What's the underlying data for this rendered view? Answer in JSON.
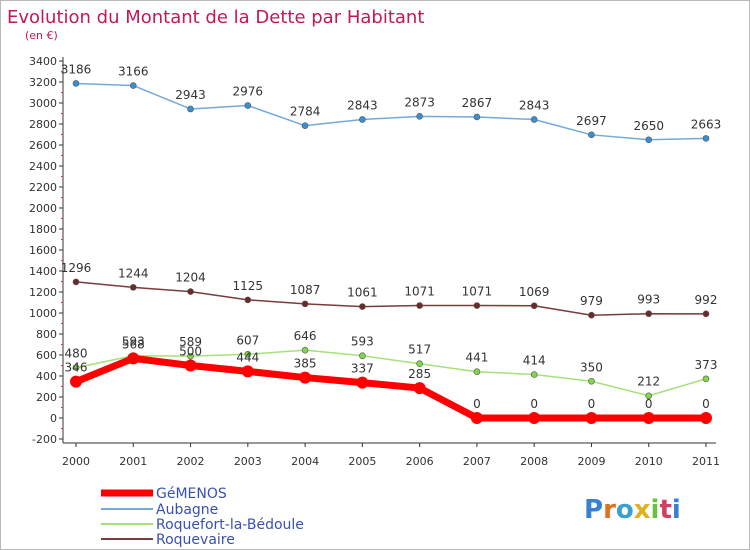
{
  "chart_data": {
    "type": "line",
    "title": "Evolution du Montant de la Dette par Habitant",
    "subtitle": "(en €)",
    "ylim": [
      -200,
      3400
    ],
    "y_ticks": [
      -200,
      0,
      200,
      400,
      600,
      800,
      1000,
      1200,
      1400,
      1600,
      1800,
      2000,
      2200,
      2400,
      2600,
      2800,
      3000,
      3200,
      3400
    ],
    "x": [
      "2000",
      "2001",
      "2002",
      "2003",
      "2004",
      "2005",
      "2006",
      "2007",
      "2008",
      "2009",
      "2010",
      "2011"
    ],
    "grid": false,
    "legend_position": "bottom-left",
    "series": [
      {
        "name": "GéMENOS",
        "color": "#ff0000",
        "point_color": "#ff0000",
        "width": 7,
        "values": [
          346,
          568,
          500,
          444,
          385,
          337,
          285,
          0,
          0,
          0,
          0,
          0
        ]
      },
      {
        "name": "Aubagne",
        "color": "#74a9d8",
        "point_color": "#3a8fd0",
        "width": 1.5,
        "values": [
          3186,
          3166,
          2943,
          2976,
          2784,
          2843,
          2873,
          2867,
          2843,
          2697,
          2650,
          2663
        ]
      },
      {
        "name": "Roquefort-la-Bédoule",
        "color": "#a6e07a",
        "point_color": "#7ed64a",
        "width": 1.5,
        "values": [
          480,
          593,
          589,
          607,
          646,
          593,
          517,
          441,
          414,
          350,
          212,
          373
        ]
      },
      {
        "name": "Roquevaire",
        "color": "#7a3b3b",
        "point_color": "#6b2a2a",
        "width": 1.5,
        "values": [
          1296,
          1244,
          1204,
          1125,
          1087,
          1061,
          1071,
          1071,
          1069,
          979,
          993,
          992
        ]
      }
    ]
  },
  "branding": {
    "logo_text": "Proxiti"
  }
}
